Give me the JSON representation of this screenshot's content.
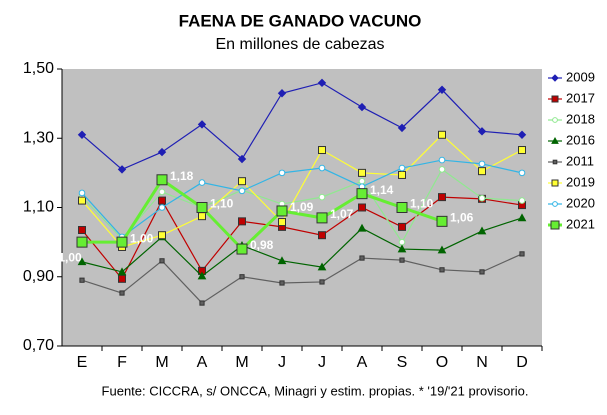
{
  "chart_data": {
    "type": "line",
    "title": "FAENA DE GANADO VACUNO",
    "subtitle": "En millones de cabezas",
    "footnote": "Fuente: CICCRA, s/ ONCCA, Minagri y estim. propias. * '19/'21 provisorio.",
    "categories": [
      "E",
      "F",
      "M",
      "A",
      "M",
      "J",
      "J",
      "A",
      "S",
      "O",
      "N",
      "D"
    ],
    "ylim": [
      0.7,
      1.5
    ],
    "yticks": [
      {
        "value": 0.7,
        "label": "0,70"
      },
      {
        "value": 0.9,
        "label": "0,90"
      },
      {
        "value": 1.1,
        "label": "1,10"
      },
      {
        "value": 1.3,
        "label": "1,30"
      },
      {
        "value": 1.5,
        "label": "1,50"
      }
    ],
    "grid": false,
    "legend": "right",
    "series": [
      {
        "name": "2009",
        "color": "#1f1fb4",
        "marker": "diamond",
        "values": [
          1.31,
          1.21,
          1.26,
          1.34,
          1.24,
          1.43,
          1.46,
          1.39,
          1.33,
          1.44,
          1.32,
          1.31
        ]
      },
      {
        "name": "2017",
        "color": "#c00000",
        "marker": "square",
        "values": [
          1.035,
          0.894,
          1.12,
          0.917,
          1.06,
          1.044,
          1.02,
          1.1,
          1.044,
          1.13,
          1.125,
          1.107
        ]
      },
      {
        "name": "2018",
        "color": "#90e890",
        "marker": "circle",
        "values": [
          1.13,
          1.01,
          1.145,
          1.1,
          1.15,
          1.11,
          1.13,
          1.176,
          1.0,
          1.21,
          1.127,
          1.12
        ]
      },
      {
        "name": "2016",
        "color": "#006400",
        "marker": "triangle",
        "values": [
          0.943,
          0.914,
          1.015,
          0.902,
          0.99,
          0.946,
          0.928,
          1.04,
          0.98,
          0.977,
          1.032,
          1.07
        ]
      },
      {
        "name": "2011",
        "color": "#606060",
        "marker": "smallsquare",
        "values": [
          0.89,
          0.853,
          0.946,
          0.824,
          0.9,
          0.882,
          0.885,
          0.954,
          0.948,
          0.92,
          0.914,
          0.966
        ]
      },
      {
        "name": "2019",
        "color": "#ffff33",
        "marker": "square",
        "values": [
          1.12,
          0.986,
          1.02,
          1.075,
          1.176,
          1.058,
          1.266,
          1.2,
          1.194,
          1.31,
          1.205,
          1.266
        ]
      },
      {
        "name": "2020",
        "color": "#33b5e5",
        "marker": "circle",
        "values": [
          1.142,
          1.015,
          1.1,
          1.172,
          1.148,
          1.2,
          1.214,
          1.16,
          1.214,
          1.237,
          1.226,
          1.2
        ]
      },
      {
        "name": "2021",
        "color": "#66ee33",
        "marker": "square",
        "values": [
          1.0,
          1.0,
          1.18,
          1.1,
          0.98,
          1.09,
          1.07,
          1.14,
          1.1,
          1.06,
          null,
          null
        ],
        "value_labels": [
          "1,00",
          "1,00",
          "1,18",
          "1,10",
          "0,98",
          "1,09",
          "1,07",
          "1,14",
          "1,10",
          "1,06",
          null,
          null
        ]
      }
    ]
  }
}
